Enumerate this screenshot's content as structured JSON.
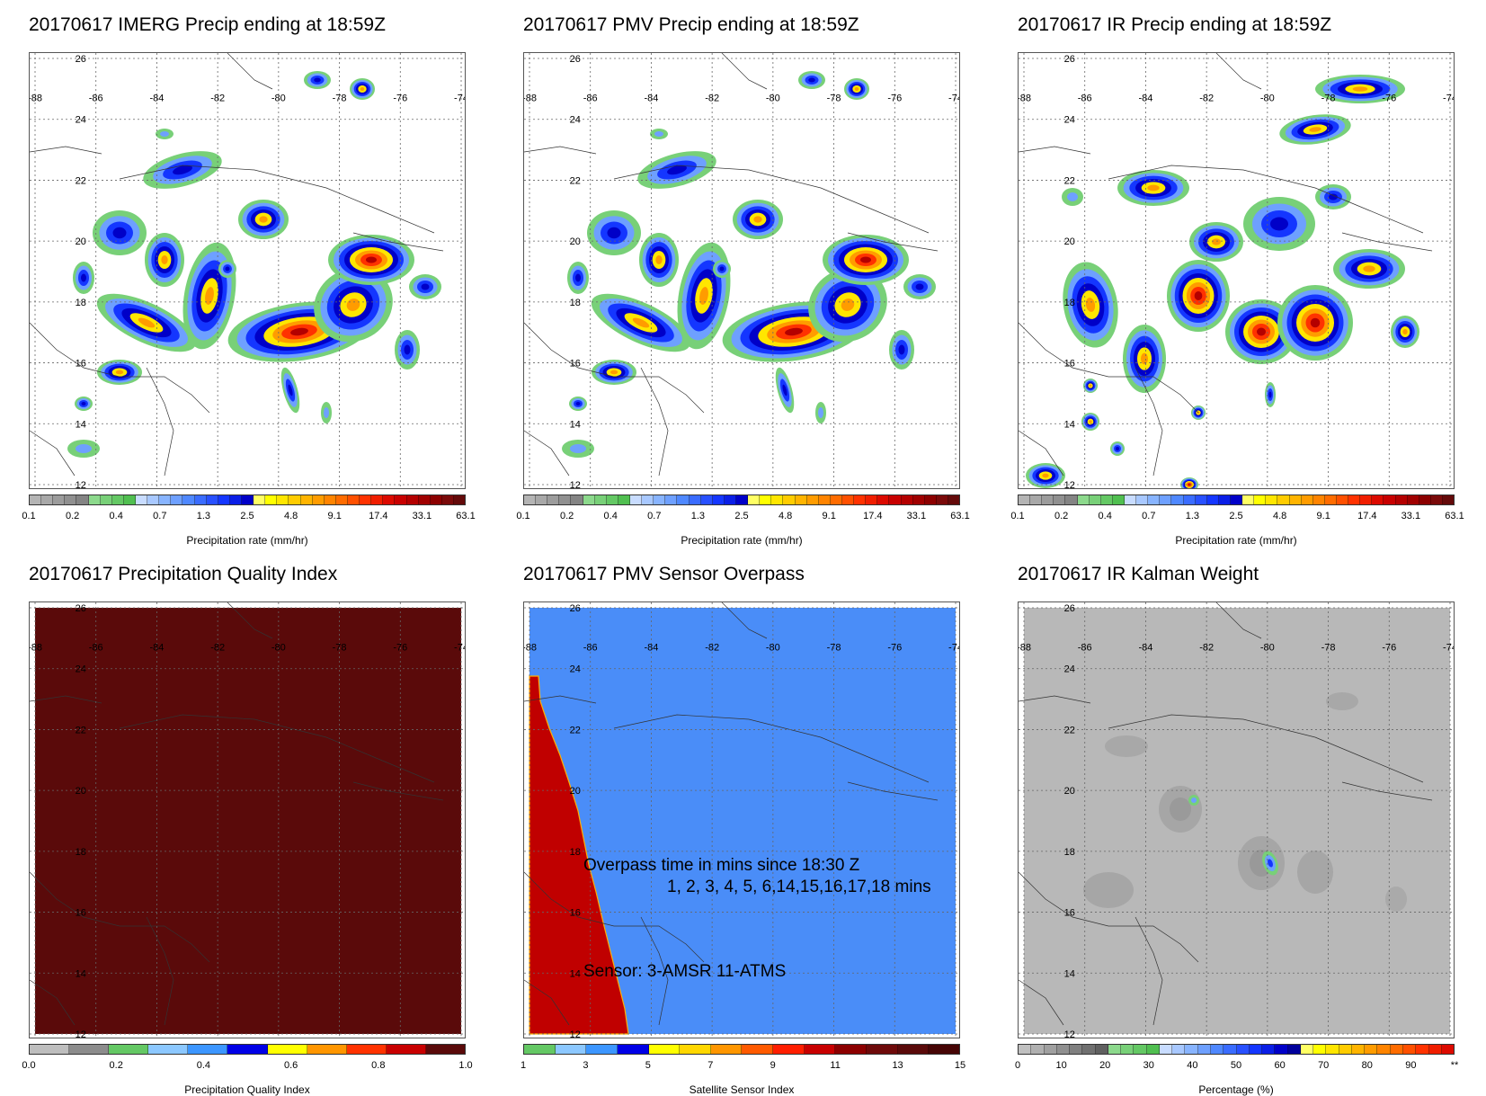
{
  "panels": [
    {
      "title": "20170617 IMERG Precip ending at 18:59Z",
      "kind": "precip",
      "colorbar_label": "Precipitation rate (mm/hr)"
    },
    {
      "title": "20170617 PMV Precip ending at 18:59Z",
      "kind": "precip",
      "colorbar_label": "Precipitation rate (mm/hr)"
    },
    {
      "title": "20170617 IR Precip ending at 18:59Z",
      "kind": "precip_ir",
      "colorbar_label": "Precipitation rate (mm/hr)"
    },
    {
      "title": "20170617 Precipitation Quality Index",
      "kind": "quality",
      "colorbar_label": "Precipitation Quality Index"
    },
    {
      "title": "20170617 PMV Sensor Overpass",
      "kind": "overpass",
      "colorbar_label": "Satellite Sensor Index"
    },
    {
      "title": "20170617 IR Kalman Weight",
      "kind": "kalman",
      "colorbar_label": "Percentage (%)"
    }
  ],
  "map": {
    "lon_labels": [
      "-88",
      "-86",
      "-84",
      "-82",
      "-80",
      "-78",
      "-76",
      "-74"
    ],
    "lat_labels": [
      "26",
      "24",
      "22",
      "20",
      "18",
      "16",
      "14",
      "12"
    ]
  },
  "colorbars": {
    "precip": {
      "colors": [
        "#b4b4b4",
        "#a8a8a8",
        "#9c9c9c",
        "#909090",
        "#848484",
        "#8cd98c",
        "#78d078",
        "#64c864",
        "#50bf50",
        "#c8dcff",
        "#a8c8ff",
        "#88b4ff",
        "#6ea0ff",
        "#4f88ff",
        "#3a6cff",
        "#2850ff",
        "#1436ff",
        "#0a1ee6",
        "#0000c8",
        "#ffff64",
        "#ffff00",
        "#ffe600",
        "#ffcc00",
        "#ffb400",
        "#ff9c00",
        "#ff8400",
        "#ff6c00",
        "#ff5000",
        "#ff3200",
        "#f01e00",
        "#dc0a00",
        "#c80000",
        "#b40000",
        "#a00000",
        "#8c0000",
        "#7a0a0a",
        "#640a0a"
      ],
      "ticks": [
        "0.1",
        "0.2",
        "0.4",
        "0.7",
        "1.3",
        "2.5",
        "4.8",
        "9.1",
        "17.4",
        "33.1",
        "63.1"
      ]
    },
    "quality": {
      "colors": [
        "#bebebe",
        "#8c8c8c",
        "#64c864",
        "#8cc8ff",
        "#3c96ff",
        "#0000e6",
        "#ffff00",
        "#ff9600",
        "#ff3200",
        "#c80000",
        "#5a0a0a"
      ],
      "ticks": [
        "0.0",
        "0.2",
        "0.4",
        "0.6",
        "0.8",
        "1.0"
      ]
    },
    "overpass": {
      "colors": [
        "#64c864",
        "#8cc8ff",
        "#3c96ff",
        "#0000e6",
        "#ffff00",
        "#ffd700",
        "#ff9600",
        "#ff5a00",
        "#ff1e00",
        "#c80000",
        "#8c0000",
        "#6e0a0a",
        "#5a0a0a",
        "#460505"
      ],
      "ticks": [
        "1",
        "3",
        "5",
        "7",
        "9",
        "11",
        "13",
        "15"
      ]
    },
    "kalman": {
      "colors": [
        "#c0c0c0",
        "#b0b0b0",
        "#a0a0a0",
        "#909090",
        "#808080",
        "#707070",
        "#606060",
        "#8cd98c",
        "#78d078",
        "#64c864",
        "#50bf50",
        "#c8dcff",
        "#a8c8ff",
        "#88b4ff",
        "#6ea0ff",
        "#4f88ff",
        "#3a6cff",
        "#2850ff",
        "#1436ff",
        "#0a1ee6",
        "#0000c8",
        "#00009c",
        "#ffff64",
        "#ffff00",
        "#ffe600",
        "#ffcc00",
        "#ffb400",
        "#ff9c00",
        "#ff8400",
        "#ff6c00",
        "#ff5000",
        "#ff3200",
        "#f01e00",
        "#dc0a00"
      ],
      "ticks": [
        "0",
        "10",
        "20",
        "30",
        "40",
        "50",
        "60",
        "70",
        "80",
        "90",
        "**"
      ]
    }
  },
  "overpass_notes": {
    "line1": "Overpass time in mins since 18:30 Z",
    "line2": "1, 2, 3, 4, 5, 6,14,15,16,17,18 mins",
    "line3": "Sensor:   3-AMSR 11-ATMS"
  }
}
